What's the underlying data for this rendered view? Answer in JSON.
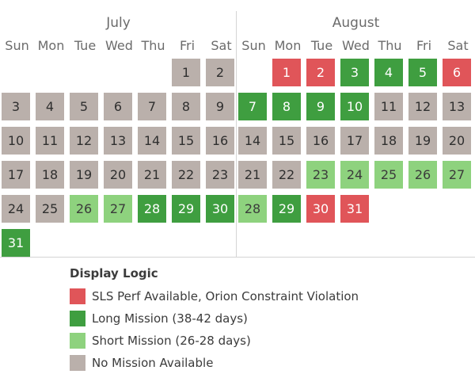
{
  "weekdays": [
    "Sun",
    "Mon",
    "Tue",
    "Wed",
    "Thu",
    "Fri",
    "Sat"
  ],
  "colors": {
    "violation": "#e05559",
    "long": "#3f9e40",
    "short": "#8ed27e",
    "none": "#bab0ab"
  },
  "chart_data": {
    "type": "calendar-heatmap",
    "title": "",
    "months": [
      {
        "name": "July",
        "first_weekday": 5,
        "days": [
          {
            "day": 1,
            "status": "none"
          },
          {
            "day": 2,
            "status": "none"
          },
          {
            "day": 3,
            "status": "none"
          },
          {
            "day": 4,
            "status": "none"
          },
          {
            "day": 5,
            "status": "none"
          },
          {
            "day": 6,
            "status": "none"
          },
          {
            "day": 7,
            "status": "none"
          },
          {
            "day": 8,
            "status": "none"
          },
          {
            "day": 9,
            "status": "none"
          },
          {
            "day": 10,
            "status": "none"
          },
          {
            "day": 11,
            "status": "none"
          },
          {
            "day": 12,
            "status": "none"
          },
          {
            "day": 13,
            "status": "none"
          },
          {
            "day": 14,
            "status": "none"
          },
          {
            "day": 15,
            "status": "none"
          },
          {
            "day": 16,
            "status": "none"
          },
          {
            "day": 17,
            "status": "none"
          },
          {
            "day": 18,
            "status": "none"
          },
          {
            "day": 19,
            "status": "none"
          },
          {
            "day": 20,
            "status": "none"
          },
          {
            "day": 21,
            "status": "none"
          },
          {
            "day": 22,
            "status": "none"
          },
          {
            "day": 23,
            "status": "none"
          },
          {
            "day": 24,
            "status": "none"
          },
          {
            "day": 25,
            "status": "none"
          },
          {
            "day": 26,
            "status": "short"
          },
          {
            "day": 27,
            "status": "short"
          },
          {
            "day": 28,
            "status": "long"
          },
          {
            "day": 29,
            "status": "long"
          },
          {
            "day": 30,
            "status": "long"
          },
          {
            "day": 31,
            "status": "long"
          }
        ]
      },
      {
        "name": "August",
        "first_weekday": 1,
        "days": [
          {
            "day": 1,
            "status": "violation"
          },
          {
            "day": 2,
            "status": "violation"
          },
          {
            "day": 3,
            "status": "long"
          },
          {
            "day": 4,
            "status": "long"
          },
          {
            "day": 5,
            "status": "long"
          },
          {
            "day": 6,
            "status": "violation"
          },
          {
            "day": 7,
            "status": "long"
          },
          {
            "day": 8,
            "status": "long"
          },
          {
            "day": 9,
            "status": "long"
          },
          {
            "day": 10,
            "status": "long"
          },
          {
            "day": 11,
            "status": "none"
          },
          {
            "day": 12,
            "status": "none"
          },
          {
            "day": 13,
            "status": "none"
          },
          {
            "day": 14,
            "status": "none"
          },
          {
            "day": 15,
            "status": "none"
          },
          {
            "day": 16,
            "status": "none"
          },
          {
            "day": 17,
            "status": "none"
          },
          {
            "day": 18,
            "status": "none"
          },
          {
            "day": 19,
            "status": "none"
          },
          {
            "day": 20,
            "status": "none"
          },
          {
            "day": 21,
            "status": "none"
          },
          {
            "day": 22,
            "status": "none"
          },
          {
            "day": 23,
            "status": "short"
          },
          {
            "day": 24,
            "status": "short"
          },
          {
            "day": 25,
            "status": "short"
          },
          {
            "day": 26,
            "status": "short"
          },
          {
            "day": 27,
            "status": "short"
          },
          {
            "day": 28,
            "status": "short"
          },
          {
            "day": 29,
            "status": "long"
          },
          {
            "day": 30,
            "status": "violation"
          },
          {
            "day": 31,
            "status": "violation"
          }
        ]
      }
    ],
    "legend": {
      "title": "Display Logic",
      "items": [
        {
          "key": "violation",
          "label": "SLS Perf Available, Orion Constraint Violation"
        },
        {
          "key": "long",
          "label": "Long Mission (38-42 days)"
        },
        {
          "key": "short",
          "label": "Short Mission (26-28 days)"
        },
        {
          "key": "none",
          "label": "No Mission Available"
        }
      ]
    }
  }
}
